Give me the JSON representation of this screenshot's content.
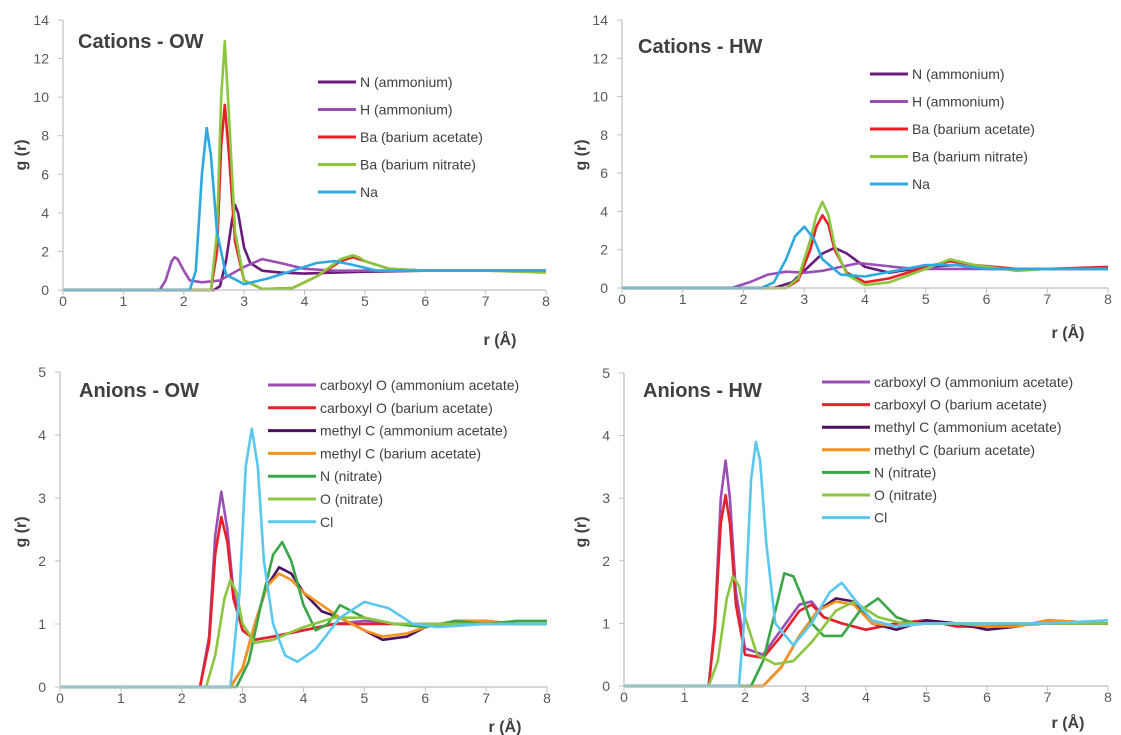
{
  "chart_data": [
    {
      "type": "line",
      "title": "Cations - OW",
      "xlabel": "r (Å)",
      "ylabel": "g (r)",
      "xlim": [
        0,
        8
      ],
      "ylim": [
        0,
        14
      ],
      "xticks": [
        0,
        1,
        2,
        3,
        4,
        5,
        6,
        7,
        8
      ],
      "yticks": [
        0,
        2,
        4,
        6,
        8,
        10,
        12,
        14
      ],
      "grid": false,
      "legend": "top-right",
      "series": [
        {
          "name": "N (ammonium)",
          "color": "#6a1b7a",
          "x": [
            0,
            2.5,
            2.6,
            2.7,
            2.8,
            2.85,
            2.9,
            3.0,
            3.1,
            3.3,
            3.6,
            4.0,
            4.5,
            5.0,
            6.0,
            7.0,
            8.0
          ],
          "y": [
            0,
            0,
            0.2,
            1.5,
            3.6,
            4.4,
            4.0,
            2.2,
            1.4,
            1.0,
            0.9,
            0.85,
            0.9,
            0.95,
            1.0,
            1.0,
            1.0
          ]
        },
        {
          "name": "H (ammonium)",
          "color": "#9b4fb5",
          "x": [
            0,
            1.6,
            1.7,
            1.8,
            1.85,
            1.9,
            2.0,
            2.1,
            2.3,
            2.6,
            3.0,
            3.3,
            3.6,
            4.0,
            4.5,
            5.0,
            6.0,
            7.0,
            8.0
          ],
          "y": [
            0,
            0,
            0.5,
            1.5,
            1.7,
            1.6,
            1.0,
            0.5,
            0.4,
            0.5,
            1.2,
            1.6,
            1.4,
            1.1,
            1.0,
            1.0,
            1.0,
            1.0,
            1.0
          ]
        },
        {
          "name": "Ba (barium acetate)",
          "color": "#e8202a",
          "x": [
            0,
            2.45,
            2.55,
            2.62,
            2.68,
            2.75,
            2.85,
            3.0,
            3.3,
            3.8,
            4.2,
            4.6,
            4.8,
            5.0,
            5.4,
            6.0,
            7.0,
            8.0
          ],
          "y": [
            0,
            0,
            2.0,
            7.5,
            9.6,
            7.0,
            2.5,
            0.5,
            0.05,
            0.1,
            0.7,
            1.5,
            1.7,
            1.5,
            1.1,
            1.0,
            1.0,
            1.0
          ]
        },
        {
          "name": "Ba (barium nitrate)",
          "color": "#8cc63f",
          "x": [
            0,
            2.45,
            2.55,
            2.62,
            2.68,
            2.75,
            2.85,
            3.0,
            3.3,
            3.8,
            4.2,
            4.6,
            4.8,
            4.9,
            5.0,
            5.4,
            6.0,
            7.0,
            8.0
          ],
          "y": [
            0,
            0,
            3.0,
            10.0,
            12.9,
            9.0,
            3.0,
            0.5,
            0.05,
            0.1,
            0.7,
            1.6,
            1.8,
            1.7,
            1.5,
            1.1,
            1.0,
            1.0,
            0.9
          ]
        },
        {
          "name": "Na",
          "color": "#2da9e0",
          "x": [
            0,
            2.1,
            2.2,
            2.3,
            2.38,
            2.45,
            2.55,
            2.7,
            3.0,
            3.4,
            3.8,
            4.2,
            4.5,
            4.8,
            5.2,
            6.0,
            7.0,
            8.0
          ],
          "y": [
            0,
            0,
            1.0,
            6.0,
            8.4,
            7.0,
            3.0,
            0.8,
            0.3,
            0.6,
            1.0,
            1.4,
            1.5,
            1.3,
            1.0,
            1.0,
            1.0,
            1.0
          ]
        }
      ]
    },
    {
      "type": "line",
      "title": "Cations - HW",
      "xlabel": "r (Å)",
      "ylabel": "g (r)",
      "xlim": [
        0,
        8
      ],
      "ylim": [
        0,
        14
      ],
      "xticks": [
        0,
        1,
        2,
        3,
        4,
        5,
        6,
        7,
        8
      ],
      "yticks": [
        0,
        2,
        4,
        6,
        8,
        10,
        12,
        14
      ],
      "grid": false,
      "legend": "top-right",
      "series": [
        {
          "name": "N (ammonium)",
          "color": "#6a1b7a",
          "x": [
            0,
            2.5,
            2.8,
            3.1,
            3.3,
            3.5,
            3.7,
            4.0,
            4.4,
            5.0,
            5.5,
            6.0,
            7.0,
            8.0
          ],
          "y": [
            0,
            0,
            0.3,
            1.2,
            1.8,
            2.1,
            1.8,
            1.1,
            0.8,
            1.1,
            1.2,
            1.0,
            1.0,
            1.0
          ]
        },
        {
          "name": "H (ammonium)",
          "color": "#9b4fb5",
          "x": [
            0,
            1.8,
            2.1,
            2.4,
            2.7,
            3.0,
            3.3,
            3.6,
            3.9,
            4.2,
            4.8,
            5.5,
            6.0,
            7.0,
            8.0
          ],
          "y": [
            0,
            0,
            0.3,
            0.7,
            0.85,
            0.8,
            0.9,
            1.1,
            1.3,
            1.2,
            1.0,
            1.0,
            1.0,
            1.0,
            1.0
          ]
        },
        {
          "name": "Ba (barium acetate)",
          "color": "#e8202a",
          "x": [
            0,
            2.7,
            2.9,
            3.1,
            3.2,
            3.3,
            3.4,
            3.5,
            3.7,
            4.0,
            4.4,
            5.0,
            5.4,
            5.8,
            6.5,
            7.0,
            8.0
          ],
          "y": [
            0,
            0,
            0.4,
            2.0,
            3.2,
            3.8,
            3.3,
            2.0,
            0.8,
            0.3,
            0.5,
            1.1,
            1.4,
            1.2,
            1.0,
            1.0,
            1.1
          ]
        },
        {
          "name": "Ba (barium nitrate)",
          "color": "#8cc63f",
          "x": [
            0,
            2.7,
            2.9,
            3.1,
            3.2,
            3.3,
            3.4,
            3.5,
            3.7,
            4.0,
            4.4,
            5.0,
            5.4,
            5.8,
            6.5,
            7.0,
            8.0
          ],
          "y": [
            0,
            0,
            0.5,
            2.5,
            3.8,
            4.5,
            3.8,
            2.2,
            0.7,
            0.15,
            0.3,
            1.0,
            1.5,
            1.2,
            0.9,
            1.0,
            1.0
          ]
        },
        {
          "name": "Na",
          "color": "#2da9e0",
          "x": [
            0,
            2.3,
            2.5,
            2.7,
            2.85,
            3.0,
            3.15,
            3.3,
            3.6,
            4.0,
            4.5,
            5.0,
            5.5,
            6.0,
            7.0,
            8.0
          ],
          "y": [
            0,
            0,
            0.3,
            1.5,
            2.7,
            3.2,
            2.6,
            1.5,
            0.7,
            0.6,
            0.9,
            1.2,
            1.2,
            1.0,
            1.0,
            1.0
          ]
        }
      ]
    },
    {
      "type": "line",
      "title": "Anions - OW",
      "xlabel": "r (Å)",
      "ylabel": "g (r)",
      "xlim": [
        0,
        8
      ],
      "ylim": [
        0,
        5
      ],
      "xticks": [
        0,
        1,
        2,
        3,
        4,
        5,
        6,
        7,
        8
      ],
      "yticks": [
        0,
        1,
        2,
        3,
        4,
        5
      ],
      "grid": false,
      "legend": "top-right",
      "series": [
        {
          "name": "carboxyl O (ammonium acetate)",
          "color": "#9b4fb5",
          "x": [
            0,
            2.3,
            2.45,
            2.55,
            2.65,
            2.75,
            2.85,
            3.0,
            3.2,
            3.5,
            4.0,
            4.5,
            5.0,
            5.5,
            6.0,
            7.0,
            8.0
          ],
          "y": [
            0,
            0,
            0.8,
            2.4,
            3.1,
            2.5,
            1.5,
            0.9,
            0.75,
            0.8,
            0.9,
            1.0,
            1.05,
            1.0,
            1.0,
            1.0,
            1.0
          ]
        },
        {
          "name": "carboxyl O (barium acetate)",
          "color": "#e8202a",
          "x": [
            0,
            2.3,
            2.45,
            2.55,
            2.65,
            2.75,
            2.85,
            3.0,
            3.2,
            3.5,
            4.0,
            4.5,
            5.0,
            5.5,
            6.0,
            7.0,
            8.0
          ],
          "y": [
            0,
            0,
            0.7,
            2.1,
            2.7,
            2.3,
            1.4,
            0.9,
            0.75,
            0.8,
            0.9,
            1.0,
            1.0,
            1.0,
            1.0,
            1.0,
            1.0
          ]
        },
        {
          "name": "methyl C (ammonium acetate)",
          "color": "#4b1260",
          "x": [
            0,
            2.8,
            3.0,
            3.2,
            3.4,
            3.6,
            3.8,
            4.0,
            4.3,
            4.6,
            5.0,
            5.3,
            5.7,
            6.0,
            6.5,
            7.0,
            7.5,
            8.0
          ],
          "y": [
            0,
            0,
            0.3,
            1.0,
            1.6,
            1.9,
            1.8,
            1.5,
            1.2,
            1.1,
            0.9,
            0.75,
            0.8,
            0.95,
            1.05,
            1.05,
            1.0,
            1.0
          ]
        },
        {
          "name": "methyl C (barium acetate)",
          "color": "#f7941d",
          "x": [
            0,
            2.8,
            3.0,
            3.2,
            3.4,
            3.6,
            3.8,
            4.0,
            4.3,
            4.6,
            5.0,
            5.3,
            5.7,
            6.0,
            6.5,
            7.0,
            7.5,
            8.0
          ],
          "y": [
            0,
            0,
            0.3,
            1.0,
            1.6,
            1.8,
            1.7,
            1.5,
            1.3,
            1.1,
            0.9,
            0.8,
            0.85,
            0.95,
            1.05,
            1.05,
            1.0,
            1.0
          ]
        },
        {
          "name": "N (nitrate)",
          "color": "#3aa648",
          "x": [
            0,
            2.9,
            3.1,
            3.3,
            3.5,
            3.65,
            3.8,
            4.0,
            4.2,
            4.4,
            4.6,
            5.0,
            5.5,
            6.0,
            6.5,
            7.0,
            7.5,
            8.0
          ],
          "y": [
            0,
            0,
            0.4,
            1.3,
            2.1,
            2.3,
            2.0,
            1.3,
            0.9,
            1.0,
            1.3,
            1.1,
            1.0,
            0.95,
            1.05,
            1.0,
            1.05,
            1.05
          ]
        },
        {
          "name": "O (nitrate)",
          "color": "#8cc63f",
          "x": [
            0,
            2.4,
            2.55,
            2.7,
            2.8,
            2.9,
            3.0,
            3.2,
            3.5,
            4.0,
            4.5,
            5.0,
            5.5,
            6.0,
            7.0,
            8.0
          ],
          "y": [
            0,
            0,
            0.5,
            1.4,
            1.7,
            1.5,
            1.0,
            0.7,
            0.75,
            0.95,
            1.1,
            1.1,
            1.0,
            1.0,
            1.0,
            1.0
          ]
        },
        {
          "name": "Cl",
          "color": "#5bc8ee",
          "x": [
            0,
            2.8,
            2.95,
            3.05,
            3.15,
            3.25,
            3.35,
            3.5,
            3.7,
            3.9,
            4.2,
            4.6,
            5.0,
            5.4,
            5.8,
            6.2,
            7.0,
            8.0
          ],
          "y": [
            0,
            0,
            1.5,
            3.5,
            4.1,
            3.5,
            2.0,
            1.0,
            0.5,
            0.4,
            0.6,
            1.1,
            1.35,
            1.25,
            1.0,
            0.95,
            1.0,
            1.0
          ]
        }
      ]
    },
    {
      "type": "line",
      "title": "Anions - HW",
      "xlabel": "r (Å)",
      "ylabel": "g (r)",
      "xlim": [
        0,
        8
      ],
      "ylim": [
        0,
        5
      ],
      "xticks": [
        0,
        1,
        2,
        3,
        4,
        5,
        6,
        7,
        8
      ],
      "yticks": [
        0,
        1,
        2,
        3,
        4,
        5
      ],
      "grid": false,
      "legend": "top-right",
      "series": [
        {
          "name": "carboxyl O (ammonium acetate)",
          "color": "#9b4fb5",
          "x": [
            0,
            1.4,
            1.5,
            1.6,
            1.68,
            1.75,
            1.85,
            2.0,
            2.3,
            2.6,
            2.9,
            3.1,
            3.3,
            3.6,
            4.0,
            4.5,
            5.0,
            5.5,
            6.0,
            7.0,
            8.0
          ],
          "y": [
            0,
            0,
            1.0,
            3.0,
            3.6,
            3.0,
            1.5,
            0.6,
            0.5,
            0.9,
            1.3,
            1.35,
            1.1,
            1.0,
            0.9,
            1.0,
            1.05,
            0.95,
            0.95,
            1.0,
            1.0
          ]
        },
        {
          "name": "carboxyl O (barium acetate)",
          "color": "#e8202a",
          "x": [
            0,
            1.4,
            1.5,
            1.6,
            1.68,
            1.75,
            1.85,
            2.0,
            2.3,
            2.6,
            2.9,
            3.1,
            3.3,
            3.6,
            4.0,
            4.5,
            5.0,
            5.5,
            6.0,
            7.0,
            8.0
          ],
          "y": [
            0,
            0,
            0.9,
            2.6,
            3.05,
            2.6,
            1.3,
            0.5,
            0.45,
            0.8,
            1.2,
            1.3,
            1.1,
            1.0,
            0.9,
            1.0,
            1.05,
            0.95,
            0.95,
            1.0,
            1.0
          ]
        },
        {
          "name": "methyl C (ammonium acetate)",
          "color": "#4b1260",
          "x": [
            0,
            2.3,
            2.6,
            2.9,
            3.2,
            3.5,
            3.8,
            4.1,
            4.5,
            5.0,
            5.5,
            6.0,
            6.5,
            7.0,
            8.0
          ],
          "y": [
            0,
            0,
            0.3,
            0.8,
            1.2,
            1.4,
            1.35,
            1.0,
            0.9,
            1.05,
            1.0,
            0.9,
            0.95,
            1.05,
            1.0
          ]
        },
        {
          "name": "methyl C (barium acetate)",
          "color": "#f7941d",
          "x": [
            0,
            2.3,
            2.6,
            2.9,
            3.2,
            3.5,
            3.8,
            4.1,
            4.5,
            5.0,
            5.5,
            6.0,
            6.5,
            7.0,
            8.0
          ],
          "y": [
            0,
            0,
            0.3,
            0.8,
            1.2,
            1.35,
            1.3,
            1.0,
            0.95,
            1.0,
            1.0,
            0.95,
            0.95,
            1.05,
            1.0
          ]
        },
        {
          "name": "N (nitrate)",
          "color": "#3aa648",
          "x": [
            0,
            2.1,
            2.3,
            2.5,
            2.65,
            2.8,
            2.95,
            3.1,
            3.3,
            3.6,
            3.9,
            4.2,
            4.5,
            4.8,
            5.2,
            6.0,
            7.0,
            8.0
          ],
          "y": [
            0,
            0,
            0.4,
            1.2,
            1.8,
            1.75,
            1.4,
            1.0,
            0.8,
            0.8,
            1.2,
            1.4,
            1.1,
            1.0,
            1.0,
            1.0,
            1.0,
            1.0
          ]
        },
        {
          "name": "O (nitrate)",
          "color": "#8cc63f",
          "x": [
            0,
            1.4,
            1.55,
            1.7,
            1.8,
            1.9,
            2.0,
            2.2,
            2.5,
            2.8,
            3.1,
            3.5,
            3.8,
            4.2,
            4.6,
            5.0,
            6.0,
            7.0,
            8.0
          ],
          "y": [
            0,
            0,
            0.4,
            1.4,
            1.75,
            1.6,
            1.1,
            0.5,
            0.35,
            0.4,
            0.7,
            1.2,
            1.35,
            1.1,
            1.0,
            1.0,
            1.0,
            1.0,
            1.0
          ]
        },
        {
          "name": "Cl",
          "color": "#5bc8ee",
          "x": [
            0,
            1.9,
            2.0,
            2.1,
            2.18,
            2.25,
            2.35,
            2.5,
            2.8,
            3.1,
            3.4,
            3.6,
            3.8,
            4.1,
            4.5,
            5.0,
            6.0,
            7.0,
            8.0
          ],
          "y": [
            0,
            0,
            1.2,
            3.3,
            3.9,
            3.6,
            2.3,
            1.0,
            0.65,
            1.0,
            1.5,
            1.65,
            1.4,
            1.05,
            0.95,
            1.0,
            1.0,
            1.0,
            1.05
          ]
        }
      ]
    }
  ]
}
